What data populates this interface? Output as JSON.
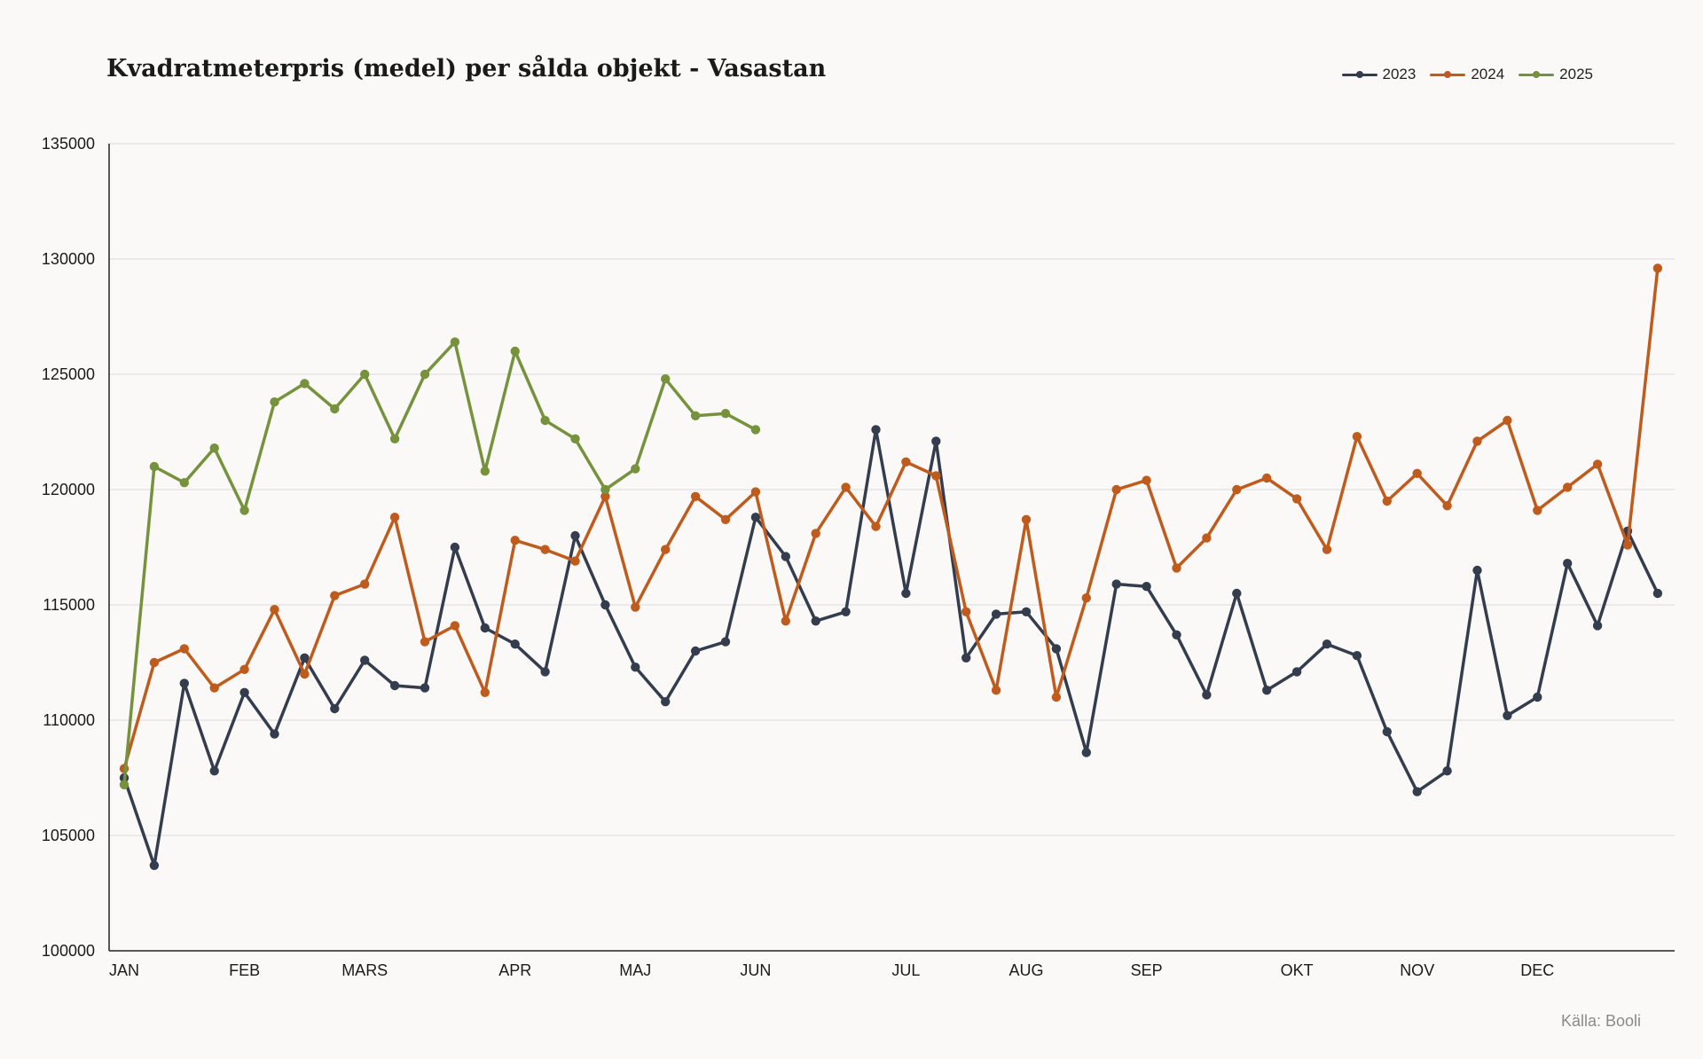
{
  "chart_data": {
    "type": "line",
    "title": "Kvadratmeterpris (medel) per sålda objekt - Vasastan",
    "xlabel": "",
    "ylabel": "",
    "ylim": [
      100000,
      135000
    ],
    "yticks": [
      "100000",
      "105000",
      "110000",
      "115000",
      "120000",
      "125000",
      "130000",
      "135000"
    ],
    "ytick_values": [
      100000,
      105000,
      110000,
      115000,
      120000,
      125000,
      130000,
      135000
    ],
    "x_count": 53,
    "month_ticks": [
      {
        "label": "JAN",
        "index": 0
      },
      {
        "label": "FEB",
        "index": 4
      },
      {
        "label": "MARS",
        "index": 8
      },
      {
        "label": "APR",
        "index": 13
      },
      {
        "label": "MAJ",
        "index": 17
      },
      {
        "label": "JUN",
        "index": 21
      },
      {
        "label": "JUL",
        "index": 26
      },
      {
        "label": "AUG",
        "index": 30
      },
      {
        "label": "SEP",
        "index": 34
      },
      {
        "label": "OKT",
        "index": 39
      },
      {
        "label": "NOV",
        "index": 43
      },
      {
        "label": "DEC",
        "index": 47
      }
    ],
    "legend_position": "top-right",
    "grid": true,
    "series": [
      {
        "name": "2023",
        "color": "#343d4e",
        "values": [
          107500,
          103700,
          111600,
          107800,
          111200,
          109400,
          112700,
          110500,
          112600,
          111500,
          111400,
          117500,
          114000,
          113300,
          112100,
          118000,
          115000,
          112300,
          110800,
          113000,
          113400,
          118800,
          117100,
          114300,
          114700,
          122600,
          115500,
          122100,
          112700,
          114600,
          114700,
          113100,
          108600,
          115900,
          115800,
          113700,
          111100,
          115500,
          111300,
          112100,
          113300,
          112800,
          109500,
          106900,
          107800,
          116500,
          110200,
          111000,
          116800,
          114100,
          118200,
          115500,
          null
        ]
      },
      {
        "name": "2024",
        "color": "#bf5b1c",
        "values": [
          107900,
          112500,
          113100,
          111400,
          112200,
          114800,
          112000,
          115400,
          115900,
          118800,
          113400,
          114100,
          111200,
          117800,
          117400,
          116900,
          119700,
          114900,
          117400,
          119700,
          118700,
          119900,
          114300,
          118100,
          120100,
          118400,
          121200,
          120600,
          114700,
          111300,
          118700,
          111000,
          115300,
          120000,
          120400,
          116600,
          117900,
          120000,
          120500,
          119600,
          117400,
          122300,
          119500,
          120700,
          119300,
          122100,
          123000,
          119100,
          120100,
          121100,
          117600,
          129600,
          null
        ]
      },
      {
        "name": "2025",
        "color": "#76923c",
        "values": [
          107200,
          121000,
          120300,
          121800,
          119100,
          123800,
          124600,
          123500,
          125000,
          122200,
          125000,
          126400,
          120800,
          126000,
          123000,
          122200,
          120000,
          120900,
          124800,
          123200,
          123300,
          122600
        ]
      }
    ]
  },
  "source_note": "Källa: Booli"
}
